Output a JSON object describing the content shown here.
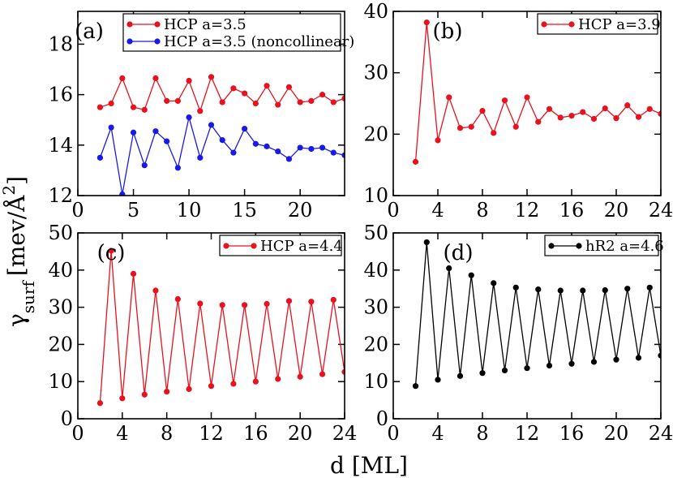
{
  "figure": {
    "ylabel_main": "γ",
    "ylabel_sub": "surf",
    "ylabel_unit": "[mev/Å",
    "ylabel_exp": "2",
    "ylabel_close": "]",
    "xlabel": "d [ML]"
  },
  "chart_data": [
    {
      "type": "line",
      "panel_label": "(a)",
      "xlabel": "d [ML]",
      "ylabel": "γsurf [mev/Å2]",
      "xlim": [
        0,
        24
      ],
      "ylim": [
        12,
        19.3
      ],
      "xticks": [
        0,
        5,
        10,
        15,
        20
      ],
      "yticks": [
        12,
        14,
        16,
        18
      ],
      "legend_position": "top-right",
      "series": [
        {
          "name": "HCP  a=3.5",
          "color": "#e8121e",
          "x": [
            2,
            3,
            4,
            5,
            6,
            7,
            8,
            9,
            10,
            11,
            12,
            13,
            14,
            15,
            16,
            17,
            18,
            19,
            20,
            21,
            22,
            23,
            24
          ],
          "values": [
            15.5,
            15.65,
            16.65,
            15.5,
            15.4,
            16.65,
            15.75,
            15.75,
            16.55,
            15.35,
            16.7,
            15.7,
            16.25,
            16.05,
            15.65,
            16.35,
            15.6,
            16.3,
            15.7,
            15.75,
            16.0,
            15.7,
            15.85
          ]
        },
        {
          "name": "HCP  a=3.5 (noncollinear)",
          "color": "#1a1ae8",
          "x": [
            2,
            3,
            4,
            5,
            6,
            7,
            8,
            9,
            10,
            11,
            12,
            13,
            14,
            15,
            16,
            17,
            18,
            19,
            20,
            21,
            22,
            23,
            24
          ],
          "values": [
            13.5,
            14.7,
            12.05,
            14.5,
            13.2,
            14.55,
            14.15,
            13.1,
            15.1,
            13.5,
            14.8,
            14.2,
            13.7,
            14.65,
            14.05,
            13.95,
            13.75,
            13.45,
            13.9,
            13.85,
            13.9,
            13.7,
            13.6
          ]
        }
      ]
    },
    {
      "type": "line",
      "panel_label": "(b)",
      "xlim": [
        0,
        24
      ],
      "ylim": [
        10,
        40
      ],
      "xticks": [
        0,
        4,
        8,
        12,
        16,
        20,
        24
      ],
      "yticks": [
        10,
        20,
        30,
        40
      ],
      "legend_position": "top-right",
      "series": [
        {
          "name": "HCP  a=3.9",
          "color": "#e8121e",
          "x": [
            2,
            3,
            4,
            5,
            6,
            7,
            8,
            9,
            10,
            11,
            12,
            13,
            14,
            15,
            16,
            17,
            18,
            19,
            20,
            21,
            22,
            23,
            24
          ],
          "values": [
            15.5,
            38.2,
            19.0,
            26.0,
            21.0,
            21.2,
            23.8,
            20.2,
            25.5,
            21.2,
            26.0,
            22.0,
            24.1,
            22.7,
            23.0,
            23.6,
            22.5,
            24.2,
            22.6,
            24.7,
            22.8,
            24.1,
            23.3
          ]
        }
      ]
    },
    {
      "type": "line",
      "panel_label": "(c)",
      "xlim": [
        0,
        24
      ],
      "ylim": [
        0,
        50
      ],
      "xticks": [
        0,
        4,
        8,
        12,
        16,
        20,
        24
      ],
      "yticks": [
        0,
        10,
        20,
        30,
        40,
        50
      ],
      "legend_position": "top-right",
      "series": [
        {
          "name": "HCP  a=4.4",
          "color": "#e8121e",
          "x": [
            2,
            3,
            4,
            5,
            6,
            7,
            8,
            9,
            10,
            11,
            12,
            13,
            14,
            15,
            16,
            17,
            18,
            19,
            20,
            21,
            22,
            23,
            24
          ],
          "values": [
            4.2,
            45.2,
            5.5,
            39.0,
            6.5,
            34.5,
            7.3,
            32.2,
            8.0,
            31.0,
            8.8,
            30.6,
            9.4,
            30.6,
            10.0,
            30.9,
            10.7,
            31.7,
            11.3,
            31.5,
            12.0,
            32.0,
            12.6
          ]
        }
      ]
    },
    {
      "type": "line",
      "panel_label": "(d)",
      "xlim": [
        0,
        24
      ],
      "ylim": [
        0,
        50
      ],
      "xticks": [
        0,
        4,
        8,
        12,
        16,
        20,
        24
      ],
      "yticks": [
        0,
        10,
        20,
        30,
        40,
        50
      ],
      "legend_position": "top-right",
      "series": [
        {
          "name": "hR2  a=4.6",
          "color": "#000000",
          "x": [
            2,
            3,
            4,
            5,
            6,
            7,
            8,
            9,
            10,
            11,
            12,
            13,
            14,
            15,
            16,
            17,
            18,
            19,
            20,
            21,
            22,
            23,
            24
          ],
          "values": [
            8.8,
            47.5,
            10.5,
            40.5,
            11.5,
            38.6,
            12.3,
            36.5,
            13.0,
            35.3,
            13.6,
            34.8,
            14.3,
            34.5,
            14.8,
            34.5,
            15.3,
            34.6,
            15.9,
            35.0,
            16.4,
            35.3,
            17.0
          ]
        }
      ]
    }
  ]
}
